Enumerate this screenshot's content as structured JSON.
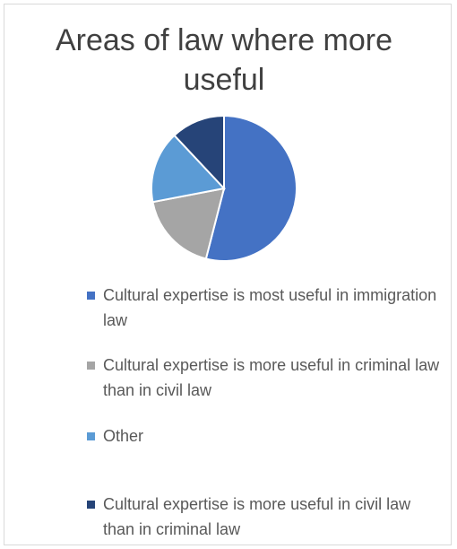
{
  "chart_data": {
    "type": "pie",
    "title": "Areas of law where more useful",
    "legend_position": "bottom",
    "categories": [
      "Cultural expertise is most useful in immigration law",
      "Cultural expertise is more useful in criminal law than in civil law",
      "Other",
      "Cultural expertise is more useful in civil law than in criminal law"
    ],
    "values": [
      54,
      18,
      16,
      12
    ],
    "colors": [
      "#4472c4",
      "#a5a5a5",
      "#5b9bd5",
      "#264478"
    ]
  }
}
